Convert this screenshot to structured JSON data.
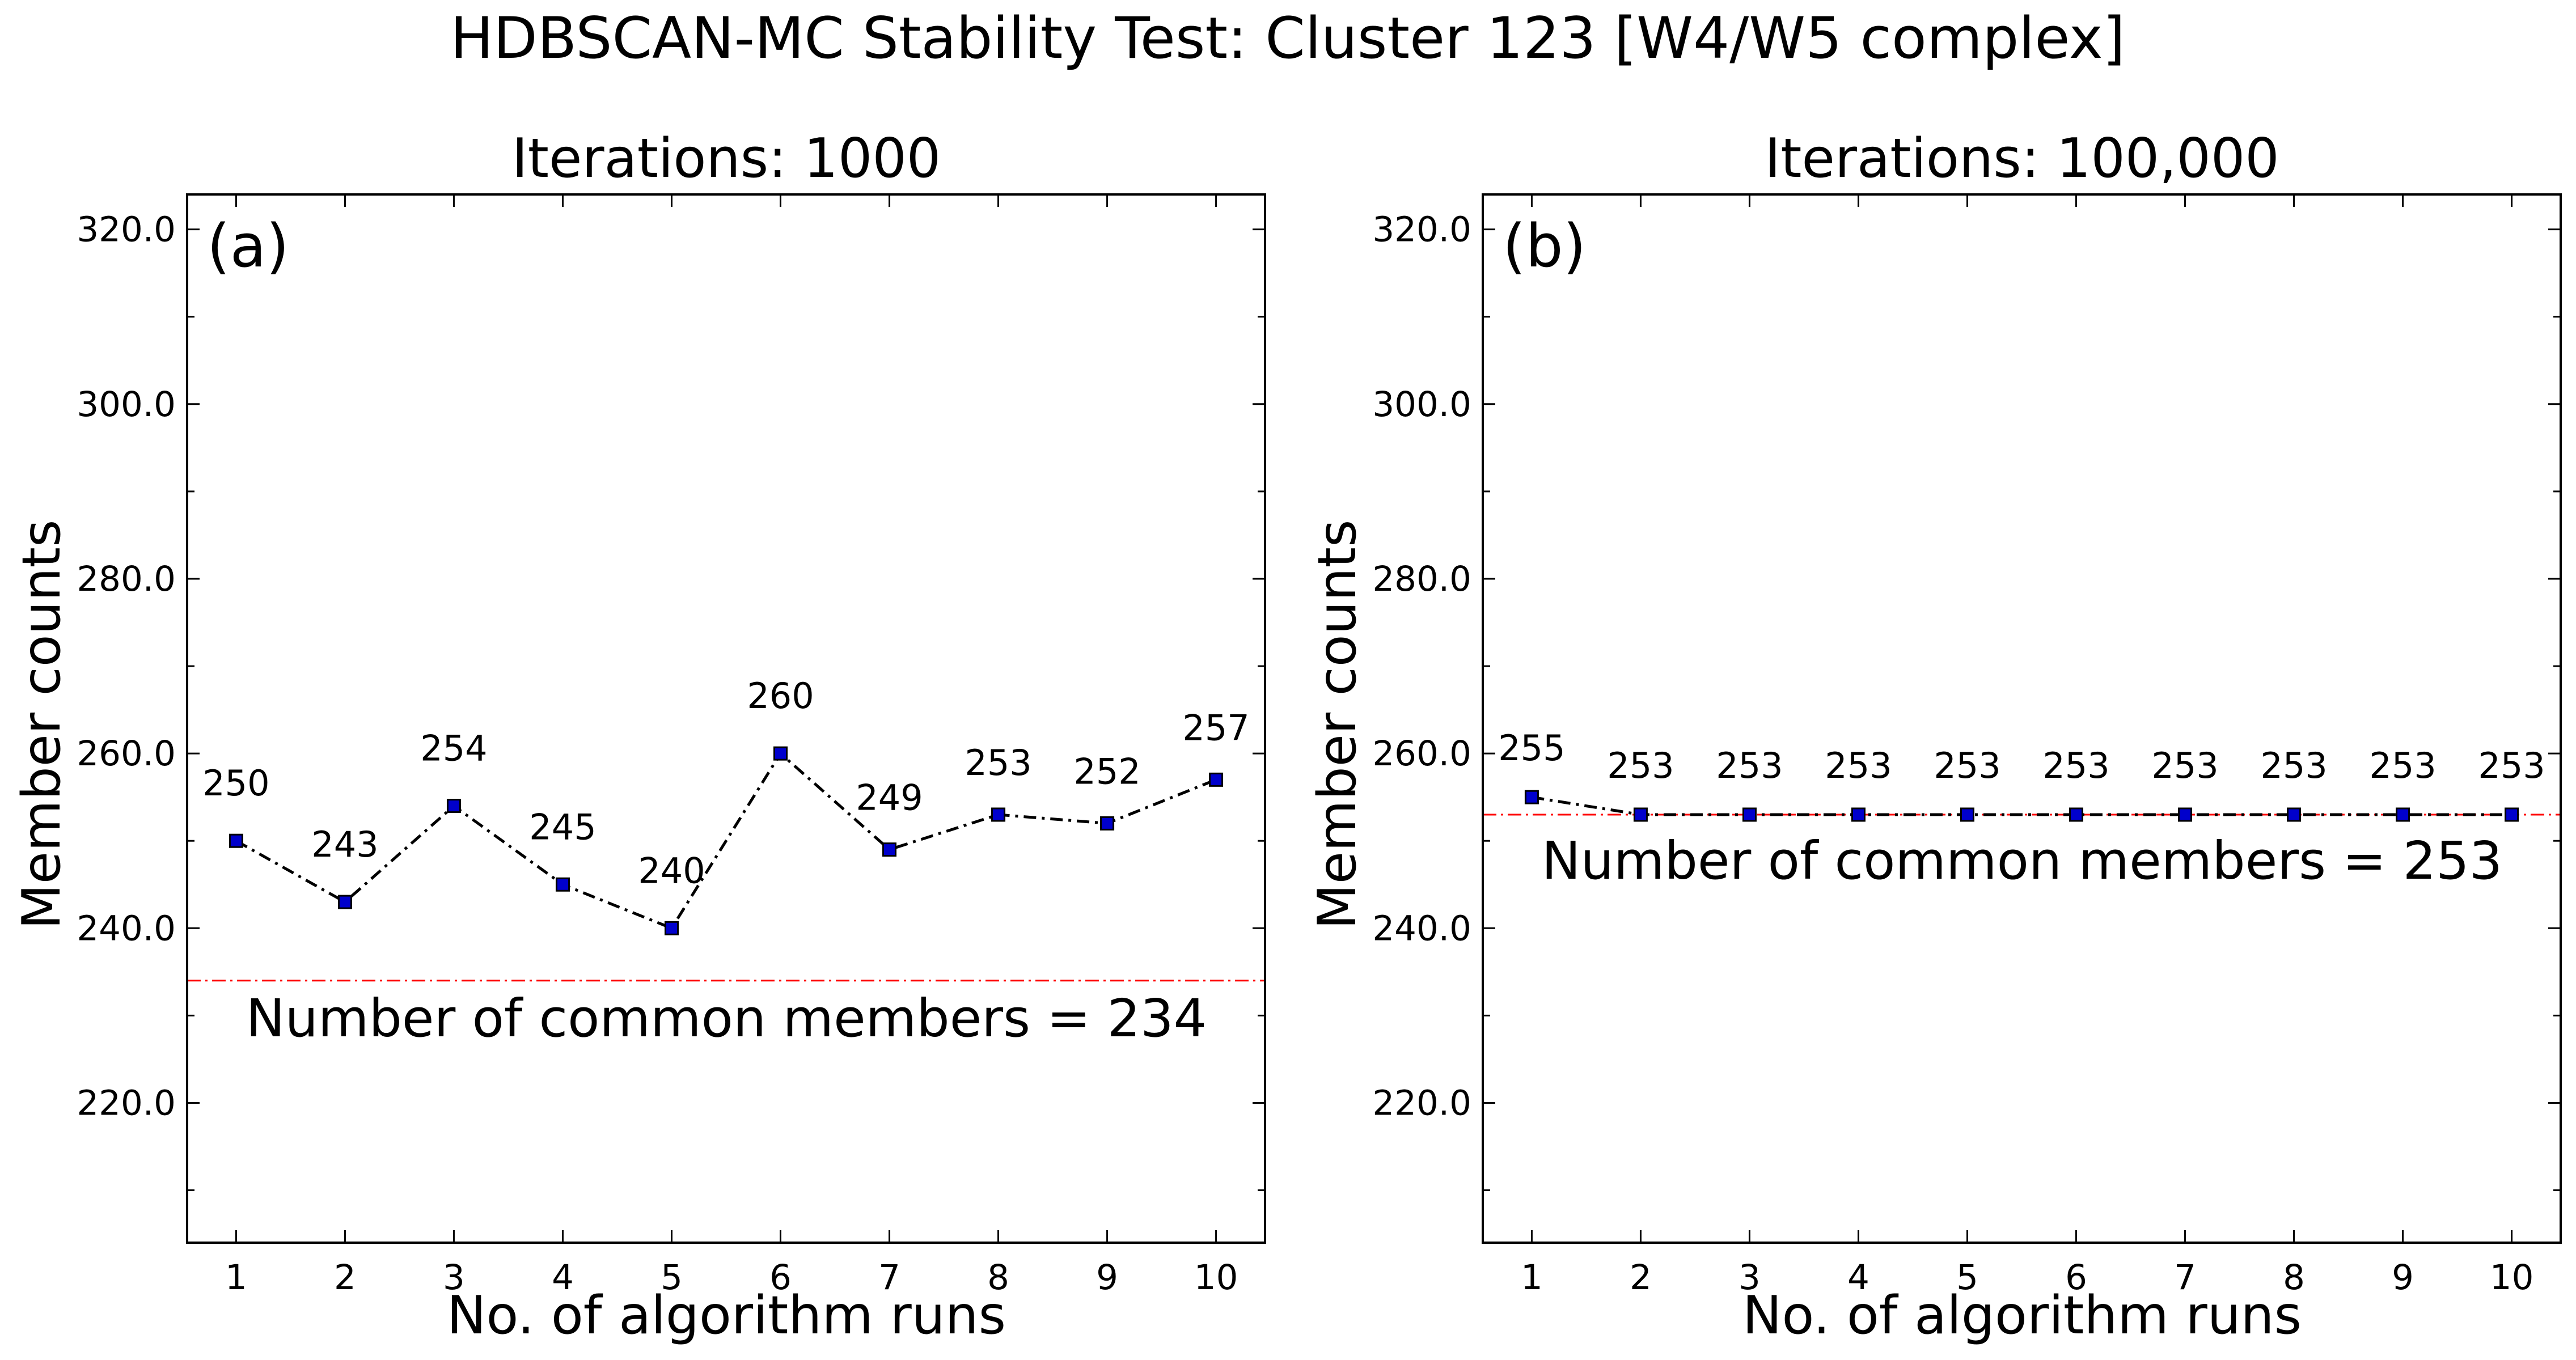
{
  "figure_title": "HDBSCAN-MC Stability Test: Cluster 123 [W4/W5 complex]",
  "chart_data": [
    {
      "type": "line",
      "panel_tag": "(a)",
      "title": "Iterations: 1000",
      "xlabel": "No. of algorithm runs",
      "ylabel": "Member counts",
      "x": [
        1,
        2,
        3,
        4,
        5,
        6,
        7,
        8,
        9,
        10
      ],
      "series": [
        {
          "values": [
            250,
            243,
            254,
            245,
            240,
            260,
            249,
            253,
            252,
            257
          ]
        }
      ],
      "data_labels": [
        "250",
        "243",
        "254",
        "245",
        "240",
        "260",
        "249",
        "253",
        "252",
        "257"
      ],
      "xticks": [
        "1",
        "2",
        "3",
        "4",
        "5",
        "6",
        "7",
        "8",
        "9",
        "10"
      ],
      "yticks": [
        "220.0",
        "240.0",
        "260.0",
        "280.0",
        "300.0",
        "320.0"
      ],
      "ytick_values": [
        220,
        240,
        260,
        280,
        300,
        320
      ],
      "xlim": [
        0.55,
        10.45
      ],
      "ylim": [
        204,
        324
      ],
      "reference_line": {
        "value": 234,
        "label": "Number of common members = 234",
        "color": "#ff0000"
      },
      "line_color": "#000000",
      "marker_color": "#0000cc",
      "grid": false
    },
    {
      "type": "line",
      "panel_tag": "(b)",
      "title": "Iterations: 100,000",
      "xlabel": "No. of algorithm runs",
      "ylabel": "Member counts",
      "x": [
        1,
        2,
        3,
        4,
        5,
        6,
        7,
        8,
        9,
        10
      ],
      "series": [
        {
          "values": [
            255,
            253,
            253,
            253,
            253,
            253,
            253,
            253,
            253,
            253
          ]
        }
      ],
      "data_labels": [
        "255",
        "253",
        "253",
        "253",
        "253",
        "253",
        "253",
        "253",
        "253",
        "253"
      ],
      "xticks": [
        "1",
        "2",
        "3",
        "4",
        "5",
        "6",
        "7",
        "8",
        "9",
        "10"
      ],
      "yticks": [
        "220.0",
        "240.0",
        "260.0",
        "280.0",
        "300.0",
        "320.0"
      ],
      "ytick_values": [
        220,
        240,
        260,
        280,
        300,
        320
      ],
      "xlim": [
        0.55,
        10.45
      ],
      "ylim": [
        204,
        324
      ],
      "reference_line": {
        "value": 253,
        "label": "Number of common members = 253",
        "color": "#ff0000"
      },
      "line_color": "#000000",
      "marker_color": "#0000cc",
      "grid": false
    }
  ]
}
